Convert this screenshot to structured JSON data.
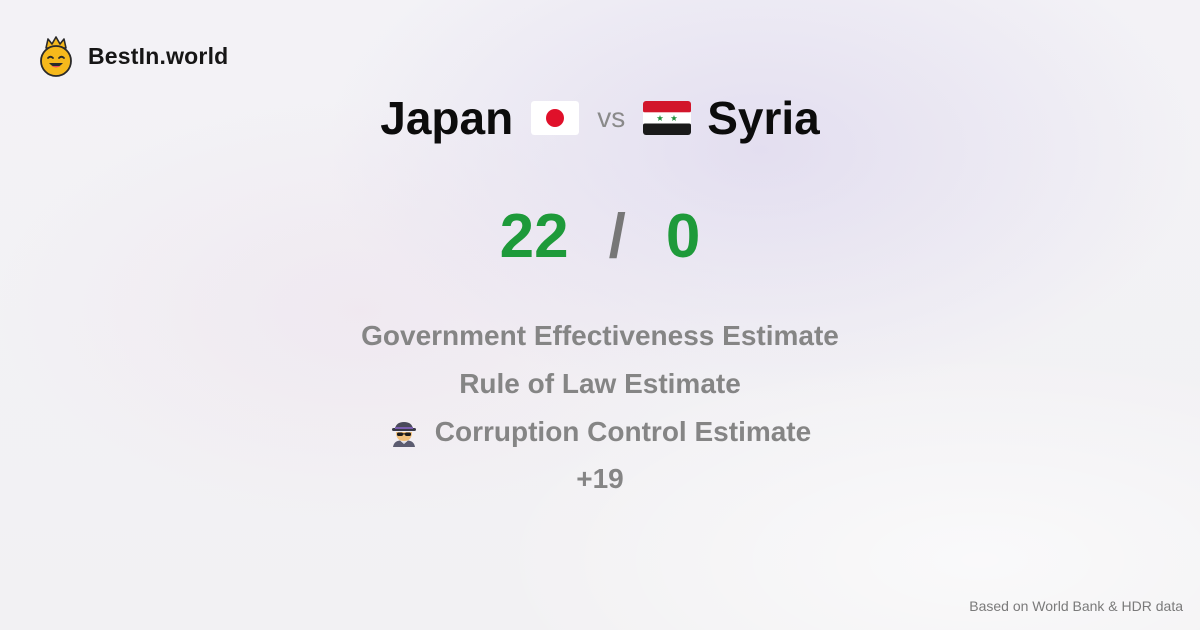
{
  "brand": {
    "name": "BestIn.world",
    "logo_icon": "crowned-smiley-icon"
  },
  "comparison": {
    "left": {
      "name": "Japan",
      "flag_icon": "japan-flag-icon",
      "score": "22"
    },
    "separator": "vs",
    "right": {
      "name": "Syria",
      "flag_icon": "syria-flag-icon",
      "score": "0"
    },
    "score_separator": "/"
  },
  "metrics": [
    {
      "label": "Government Effectiveness Estimate"
    },
    {
      "label": "Rule of Law Estimate"
    },
    {
      "label": "Corruption Control Estimate",
      "icon": "detective-icon"
    }
  ],
  "more_count": "+19",
  "footer": {
    "source": "Based on World Bank & HDR data"
  },
  "colors": {
    "score": "#1e9a3a",
    "muted_text": "#858585",
    "title_text": "#0c0c0c"
  }
}
